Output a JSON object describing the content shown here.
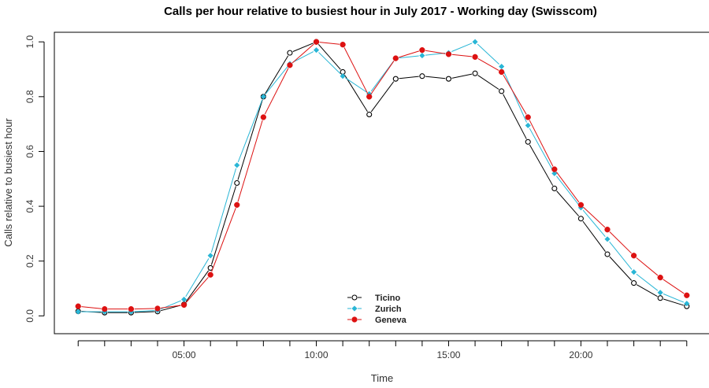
{
  "chart_data": {
    "type": "line",
    "title": "Calls per hour relative to busiest hour in July 2017 - Working day (Swisscom)",
    "xlabel": "Time",
    "ylabel": "Calls relative to busiest hour",
    "x": [
      1,
      2,
      3,
      4,
      5,
      6,
      7,
      8,
      9,
      10,
      11,
      12,
      13,
      14,
      15,
      16,
      17,
      18,
      19,
      20,
      21,
      22,
      23,
      24
    ],
    "xlim": [
      0.1,
      24.9
    ],
    "ylim": [
      -0.065,
      1.035
    ],
    "x_ticks": [
      {
        "value": 5,
        "label": "05:00"
      },
      {
        "value": 10,
        "label": "10:00"
      },
      {
        "value": 15,
        "label": "15:00"
      },
      {
        "value": 20,
        "label": "20:00"
      }
    ],
    "y_ticks": [
      {
        "value": 0.0,
        "label": "0.0"
      },
      {
        "value": 0.2,
        "label": "0.2"
      },
      {
        "value": 0.4,
        "label": "0.4"
      },
      {
        "value": 0.6,
        "label": "0.6"
      },
      {
        "value": 0.8,
        "label": "0.8"
      },
      {
        "value": 1.0,
        "label": "1.0"
      }
    ],
    "grid": false,
    "legend_position": "bottom-center",
    "series": [
      {
        "name": "Ticino",
        "color": "#000000",
        "marker": "open-circle",
        "values": [
          0.017,
          0.012,
          0.012,
          0.016,
          0.042,
          0.175,
          0.485,
          0.8,
          0.96,
          1.0,
          0.89,
          0.735,
          0.865,
          0.875,
          0.865,
          0.885,
          0.82,
          0.635,
          0.465,
          0.355,
          0.225,
          0.12,
          0.065,
          0.035
        ]
      },
      {
        "name": "Zurich",
        "color": "#29b6d6",
        "marker": "filled-diamond",
        "values": [
          0.015,
          0.015,
          0.015,
          0.02,
          0.06,
          0.22,
          0.55,
          0.8,
          0.92,
          0.97,
          0.875,
          0.81,
          0.94,
          0.95,
          0.96,
          1.0,
          0.91,
          0.695,
          0.52,
          0.395,
          0.28,
          0.16,
          0.085,
          0.045
        ]
      },
      {
        "name": "Geneva",
        "color": "#dd1111",
        "marker": "filled-circle",
        "values": [
          0.035,
          0.025,
          0.025,
          0.027,
          0.04,
          0.15,
          0.405,
          0.725,
          0.915,
          1.0,
          0.99,
          0.8,
          0.94,
          0.97,
          0.955,
          0.945,
          0.89,
          0.725,
          0.535,
          0.405,
          0.315,
          0.22,
          0.14,
          0.075
        ]
      }
    ]
  }
}
